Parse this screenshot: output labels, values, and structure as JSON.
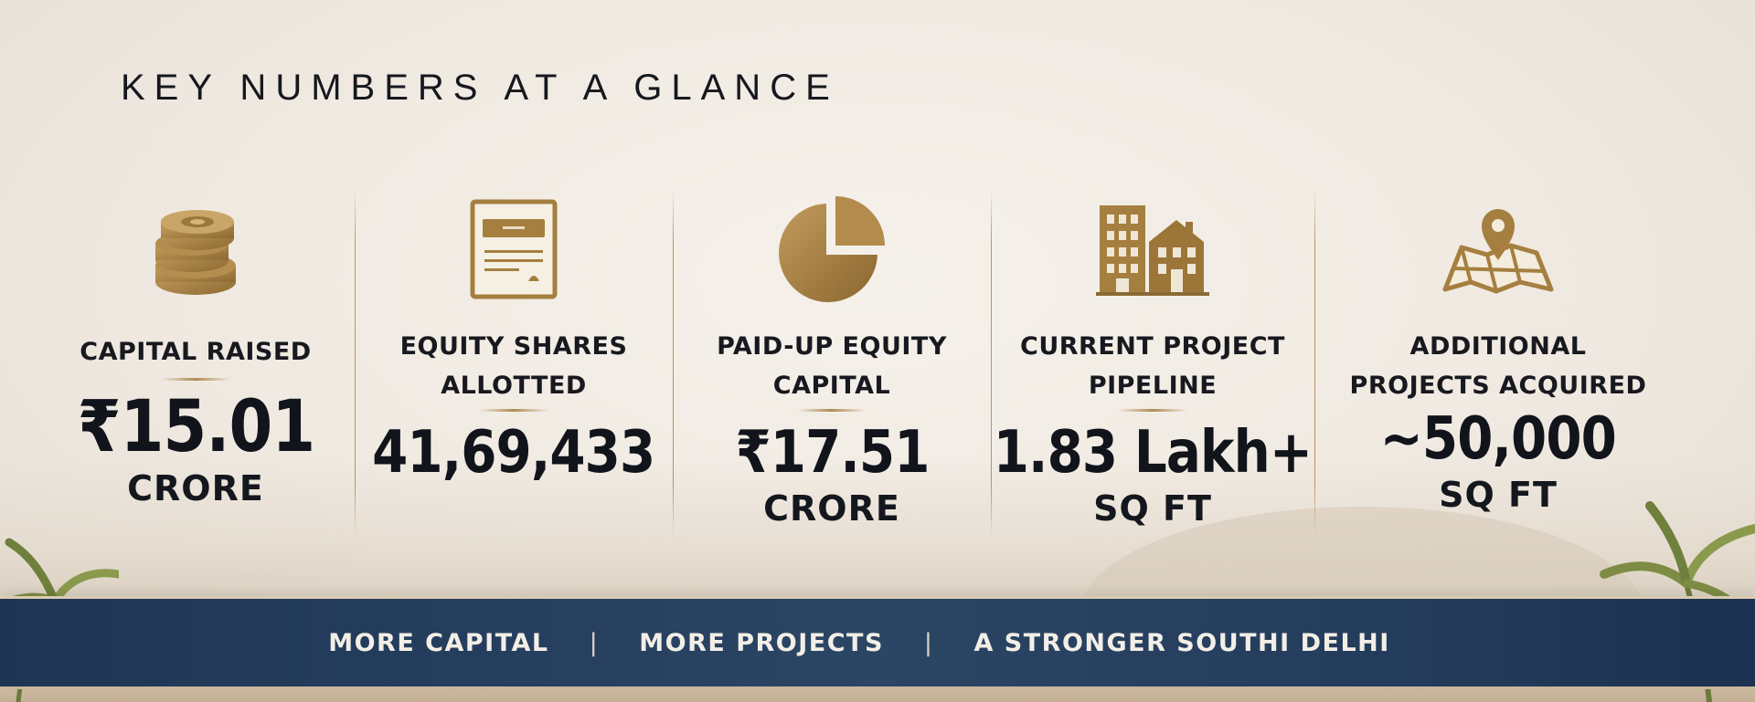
{
  "title": "KEY NUMBERS AT A GLANCE",
  "colors": {
    "gold": "#a57f3f",
    "gold_dark": "#8a6a33",
    "navy": "#243c5c",
    "text": "#14161c"
  },
  "stats": [
    {
      "icon": "coin-stack-icon",
      "label_lines": [
        "CAPITAL RAISED"
      ],
      "value": "₹15.01",
      "unit": "CRORE"
    },
    {
      "icon": "certificate-document-icon",
      "label_lines": [
        "EQUITY SHARES",
        "ALLOTTED"
      ],
      "value": "41,69,433",
      "unit": ""
    },
    {
      "icon": "pie-chart-icon",
      "label_lines": [
        "PAID-UP EQUITY",
        "CAPITAL"
      ],
      "value": "₹17.51",
      "unit": "CRORE"
    },
    {
      "icon": "buildings-icon",
      "label_lines": [
        "CURRENT PROJECT",
        "PIPELINE"
      ],
      "value": "1.83 Lakh+",
      "unit": "SQ FT"
    },
    {
      "icon": "map-pin-icon",
      "label_lines": [
        "ADDITIONAL",
        "PROJECTS ACQUIRED"
      ],
      "value": "~50,000",
      "unit": "SQ FT"
    }
  ],
  "banner": {
    "items": [
      "MORE CAPITAL",
      "MORE PROJECTS",
      "A STRONGER SOUTHI DELHI"
    ],
    "separator": "|"
  }
}
